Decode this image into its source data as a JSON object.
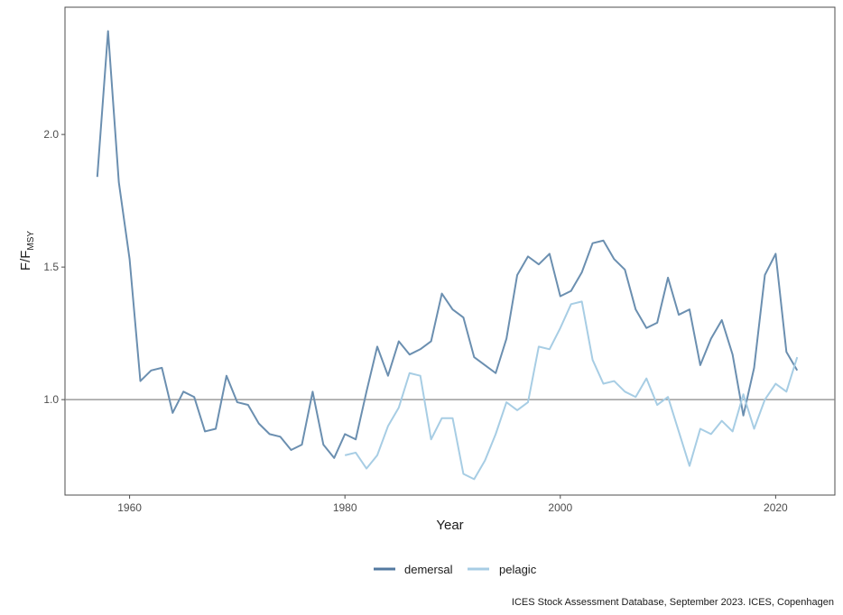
{
  "chart_data": {
    "type": "line",
    "xlabel": "Year",
    "ylabel_main": "F/F",
    "ylabel_sub": "MSY",
    "xlim": [
      1954,
      2025.5
    ],
    "ylim": [
      0.64,
      2.48
    ],
    "xticks": [
      1960,
      1980,
      2000,
      2020
    ],
    "yticks": [
      1.0,
      1.5,
      2.0
    ],
    "ytick_labels": [
      "1.0",
      "1.5",
      "2.0"
    ],
    "reference_line": 1.0,
    "grid": false,
    "legend_position": "bottom",
    "caption": "ICES Stock Assessment Database, September 2023. ICES, Copenhagen",
    "colors": {
      "demersal": "#6b8fb0",
      "pelagic": "#a7cde4",
      "reference": "#888888",
      "legend_demersal": "#5379a0",
      "legend_pelagic": "#a7cde4"
    },
    "series": [
      {
        "name": "demersal",
        "x": [
          1957,
          1958,
          1959,
          1960,
          1961,
          1962,
          1963,
          1964,
          1965,
          1966,
          1967,
          1968,
          1969,
          1970,
          1971,
          1972,
          1973,
          1974,
          1975,
          1976,
          1977,
          1978,
          1979,
          1980,
          1981,
          1982,
          1983,
          1984,
          1985,
          1986,
          1987,
          1988,
          1989,
          1990,
          1991,
          1992,
          1993,
          1994,
          1995,
          1996,
          1997,
          1998,
          1999,
          2000,
          2001,
          2002,
          2003,
          2004,
          2005,
          2006,
          2007,
          2008,
          2009,
          2010,
          2011,
          2012,
          2013,
          2014,
          2015,
          2016,
          2017,
          2018,
          2019,
          2020,
          2021,
          2022
        ],
        "values": [
          1.84,
          2.39,
          1.82,
          1.53,
          1.07,
          1.11,
          1.12,
          0.95,
          1.03,
          1.01,
          0.88,
          0.89,
          1.09,
          0.99,
          0.98,
          0.91,
          0.87,
          0.86,
          0.81,
          0.83,
          1.03,
          0.83,
          0.78,
          0.87,
          0.85,
          1.03,
          1.2,
          1.09,
          1.22,
          1.17,
          1.19,
          1.22,
          1.4,
          1.34,
          1.31,
          1.16,
          1.13,
          1.1,
          1.23,
          1.47,
          1.54,
          1.51,
          1.55,
          1.39,
          1.41,
          1.48,
          1.59,
          1.6,
          1.53,
          1.49,
          1.34,
          1.27,
          1.29,
          1.46,
          1.32,
          1.34,
          1.13,
          1.23,
          1.3,
          1.17,
          0.94,
          1.12,
          1.47,
          1.55,
          1.18,
          1.11
        ]
      },
      {
        "name": "pelagic",
        "x": [
          1980,
          1981,
          1982,
          1983,
          1984,
          1985,
          1986,
          1987,
          1988,
          1989,
          1990,
          1991,
          1992,
          1993,
          1994,
          1995,
          1996,
          1997,
          1998,
          1999,
          2000,
          2001,
          2002,
          2003,
          2004,
          2005,
          2006,
          2007,
          2008,
          2009,
          2010,
          2011,
          2012,
          2013,
          2014,
          2015,
          2016,
          2017,
          2018,
          2019,
          2020,
          2021,
          2022
        ],
        "values": [
          0.79,
          0.8,
          0.74,
          0.79,
          0.9,
          0.97,
          1.1,
          1.09,
          0.85,
          0.93,
          0.93,
          0.72,
          0.7,
          0.77,
          0.87,
          0.99,
          0.96,
          0.99,
          1.2,
          1.19,
          1.27,
          1.36,
          1.37,
          1.15,
          1.06,
          1.07,
          1.03,
          1.01,
          1.08,
          0.98,
          1.01,
          0.88,
          0.75,
          0.89,
          0.87,
          0.92,
          0.88,
          1.02,
          0.89,
          1.0,
          1.06,
          1.03,
          1.16
        ]
      }
    ]
  }
}
